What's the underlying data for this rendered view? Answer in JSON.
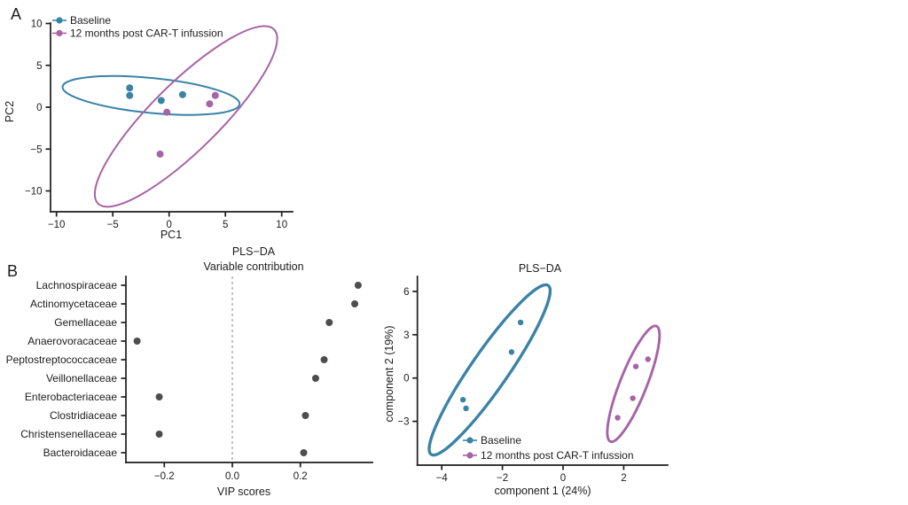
{
  "panels": {
    "a_label": "A",
    "b_label": "B"
  },
  "colors": {
    "baseline": "#3a83a6",
    "post": "#a763a6",
    "vip_dot": "#4d4d4d",
    "axis": "#1c1c1c",
    "dashed": "#a3a3a3"
  },
  "legend": {
    "baseline": "Baseline",
    "post": "12 months post CAR-T infussion"
  },
  "chart_data": [
    {
      "id": "pca",
      "type": "scatter",
      "xlabel": "PC1",
      "ylabel": "PC2",
      "xlim": [
        -10.5,
        11
      ],
      "ylim": [
        -12.5,
        10
      ],
      "xticks": [
        -10,
        -5,
        0,
        5,
        10
      ],
      "xtick_labels": [
        "−10",
        "−5",
        "0",
        "5",
        "10"
      ],
      "yticks": [
        10,
        5,
        0,
        -5,
        -10
      ],
      "ytick_labels": [
        "10",
        "5",
        "0",
        "−5",
        "−10"
      ],
      "legend_position": "top-left",
      "series": [
        {
          "name": "Baseline",
          "color_key": "baseline",
          "points": [
            [
              -3.5,
              2.3
            ],
            [
              -3.5,
              1.4
            ],
            [
              -0.7,
              0.8
            ],
            [
              1.2,
              1.5
            ]
          ]
        },
        {
          "name": "12 months post CAR-T infussion",
          "color_key": "post",
          "points": [
            [
              4.1,
              1.4
            ],
            [
              3.6,
              0.4
            ],
            [
              -0.2,
              -0.6
            ],
            [
              -0.8,
              -5.6
            ]
          ]
        }
      ],
      "ellipses": [
        {
          "group": "baseline",
          "cx": -1.6,
          "cy": 1.4,
          "a": 7.9,
          "b": 1.55,
          "angle": 5.6
        },
        {
          "group": "post",
          "cx": 1.5,
          "cy": -1.1,
          "a": 11.0,
          "b": 3.0,
          "angle": -44.7
        }
      ]
    },
    {
      "id": "vip",
      "type": "dot",
      "title_line1": "PLS−DA",
      "title_line2": "Variable contribution",
      "xlabel": "VIP scores",
      "xlim": [
        -0.31,
        0.41
      ],
      "xticks": [
        -0.2,
        0.0,
        0.2
      ],
      "xtick_labels": [
        "−0.2",
        "0.0",
        "0.2"
      ],
      "zero_line": true,
      "categories": [
        "Lachnospiraceae",
        "Actinomycetaceae",
        "Gemellaceae",
        "Anaerovoracaceae",
        "Peptostreptococcaceae",
        "Veillonellaceae",
        "Enterobacteriaceae",
        "Clostridiaceae",
        "Christensenellaceae",
        "Bacteroidaceae"
      ],
      "values": [
        0.37,
        0.36,
        0.285,
        -0.28,
        0.27,
        0.245,
        -0.215,
        0.215,
        -0.215,
        0.21
      ]
    },
    {
      "id": "plsda",
      "type": "scatter",
      "title": "PLS−DA",
      "xlabel": "component 1 (24%)",
      "ylabel": "component 2 (19%)",
      "xlim": [
        -4.8,
        3.5
      ],
      "ylim": [
        -6.0,
        7.0
      ],
      "xticks": [
        -4,
        -2,
        0,
        2
      ],
      "xtick_labels": [
        "−4",
        "−2",
        "0",
        "2"
      ],
      "yticks": [
        6,
        3,
        0,
        -3
      ],
      "ytick_labels": [
        "6",
        "3",
        "0",
        "−3"
      ],
      "legend_position": "bottom-inside",
      "series": [
        {
          "name": "Baseline",
          "color_key": "baseline",
          "points": [
            [
              -1.4,
              3.85
            ],
            [
              -1.7,
              1.8
            ],
            [
              -3.3,
              -1.5
            ],
            [
              -3.2,
              -2.1
            ]
          ]
        },
        {
          "name": "12 months post CAR-T infussion",
          "color_key": "post",
          "points": [
            [
              2.8,
              1.3
            ],
            [
              2.4,
              0.8
            ],
            [
              2.3,
              -1.4
            ],
            [
              1.8,
              -2.75
            ]
          ]
        }
      ],
      "ellipses": [
        {
          "group": "baseline",
          "cx": -2.42,
          "cy": 0.56,
          "a": 3.39,
          "b": 0.61,
          "angle": -55.3
        },
        {
          "group": "post",
          "cx": 2.32,
          "cy": -0.4,
          "a": 2.05,
          "b": 0.44,
          "angle": -68.3
        }
      ]
    }
  ]
}
